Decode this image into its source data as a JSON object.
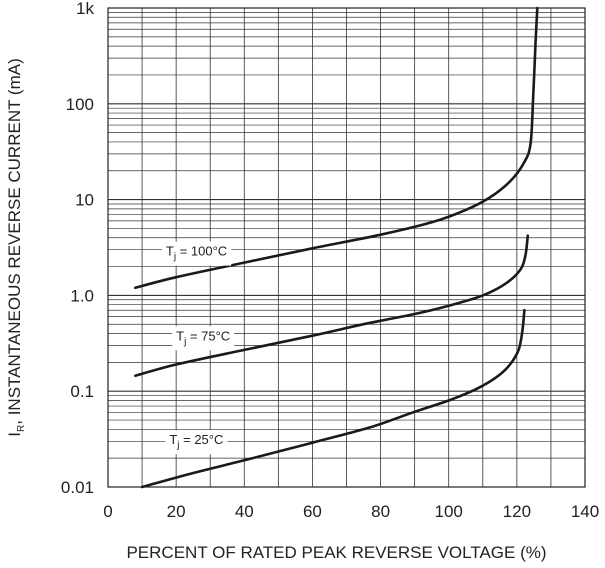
{
  "chart_data": {
    "type": "line",
    "xlabel": "PERCENT OF RATED PEAK REVERSE VOLTAGE (%)",
    "ylabel_main": "I",
    "ylabel_sub": "R",
    "ylabel_rest": ", INSTANTANEOUS REVERSE CURRENT (mA)",
    "xlim": [
      0,
      140
    ],
    "ylim": [
      0.01,
      1000
    ],
    "yscale": "log",
    "grid": true,
    "x_ticks": [
      {
        "value": 0,
        "label": "0"
      },
      {
        "value": 20,
        "label": "20"
      },
      {
        "value": 40,
        "label": "40"
      },
      {
        "value": 60,
        "label": "60"
      },
      {
        "value": 80,
        "label": "80"
      },
      {
        "value": 100,
        "label": "100"
      },
      {
        "value": 120,
        "label": "120"
      },
      {
        "value": 140,
        "label": "140"
      }
    ],
    "y_ticks": [
      {
        "value": 0.01,
        "label": "0.01"
      },
      {
        "value": 0.1,
        "label": "0.1"
      },
      {
        "value": 1,
        "label": "1.0"
      },
      {
        "value": 10,
        "label": "10"
      },
      {
        "value": 100,
        "label": "100"
      },
      {
        "value": 1000,
        "label": "1k"
      }
    ],
    "series": [
      {
        "label_main": "T",
        "label_sub": "j",
        "label_rest": " = 100°C",
        "label_at": [
          17,
          2.6
        ],
        "x": [
          8,
          20,
          40,
          60,
          80,
          95,
          105,
          112,
          118,
          122,
          124,
          124.8,
          125.5,
          126
        ],
        "y": [
          1.2,
          1.55,
          2.2,
          3.1,
          4.3,
          5.8,
          7.8,
          10.5,
          15.5,
          24,
          38,
          120,
          450,
          1000
        ]
      },
      {
        "label_main": "T",
        "label_sub": "j",
        "label_rest": " = 75°C",
        "label_at": [
          20,
          0.34
        ],
        "x": [
          8,
          20,
          40,
          60,
          75,
          90,
          100,
          110,
          117,
          121,
          122.5,
          123.2
        ],
        "y": [
          0.145,
          0.19,
          0.27,
          0.38,
          0.5,
          0.64,
          0.78,
          1.0,
          1.35,
          1.85,
          2.6,
          4.2
        ]
      },
      {
        "label_main": "T",
        "label_sub": "j",
        "label_rest": " = 25°C",
        "label_at": [
          18,
          0.028
        ],
        "x": [
          10,
          25,
          40,
          60,
          77,
          90,
          100,
          108,
          114,
          118,
          120.5,
          121.6,
          122.2
        ],
        "y": [
          0.01,
          0.014,
          0.019,
          0.029,
          0.042,
          0.061,
          0.08,
          0.105,
          0.14,
          0.19,
          0.27,
          0.42,
          0.7
        ]
      }
    ]
  }
}
